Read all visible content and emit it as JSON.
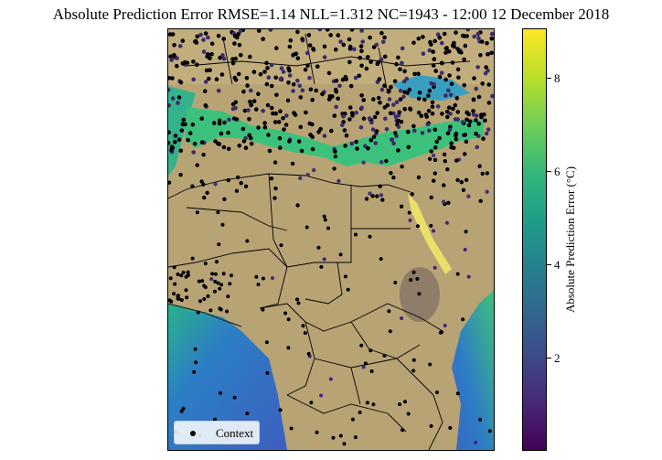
{
  "title": "Absolute Prediction Error RMSE=1.14 NLL=1.312 NC=1943 - 12:00 12 December 2018",
  "colorbar": {
    "label": "Absolute Prediction Error (°C)",
    "colormap": "viridis",
    "range": [
      0.1,
      9.1
    ],
    "ticks": [
      "2",
      "4",
      "6",
      "8"
    ],
    "tick_values": [
      2,
      4,
      6,
      8
    ]
  },
  "legend": {
    "label": "Context",
    "marker_color": "#000000",
    "placement": "lower-left"
  },
  "colors": {
    "land": "#b8a375",
    "sea_low_error": "#2f6fc7",
    "sea_high_error": "#2fbf8f",
    "boundaries": "#000000"
  }
}
